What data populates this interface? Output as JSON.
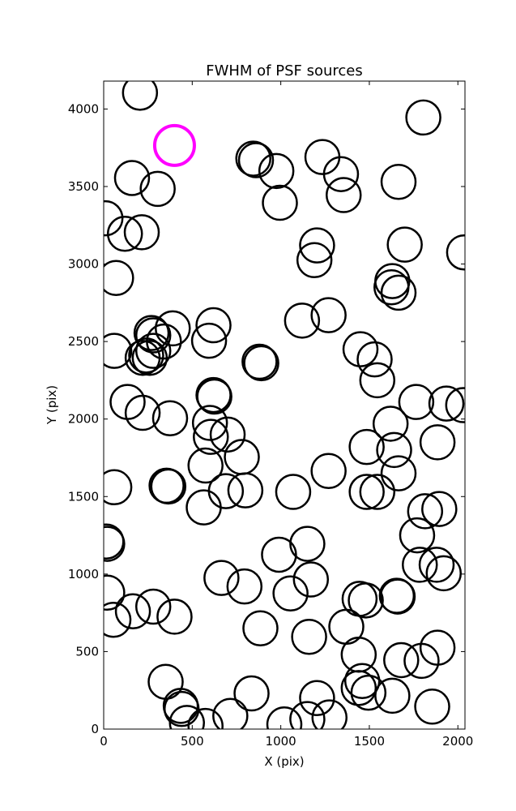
{
  "chart_data": {
    "type": "scatter",
    "title": "FWHM of PSF sources",
    "xlabel": "X (pix)",
    "ylabel": "Y (pix)",
    "xlim": [
      0,
      2040
    ],
    "ylim": [
      0,
      4180
    ],
    "x_ticks": [
      0,
      500,
      1000,
      1500,
      2000
    ],
    "y_ticks": [
      0,
      500,
      1000,
      1500,
      2000,
      2500,
      3000,
      3500,
      4000
    ],
    "grid": false,
    "legend": "none",
    "marker": "open circle",
    "colors": {
      "normal": "#000000",
      "highlight": "#ff00ff"
    },
    "series": [
      {
        "role": "normal",
        "fwhm": 12,
        "points": [
          [
            205,
            4105
          ],
          [
            1805,
            3945
          ],
          [
            845,
            3680
          ],
          [
            860,
            3670
          ],
          [
            1235,
            3690
          ],
          [
            975,
            3600
          ],
          [
            1340,
            3580
          ],
          [
            1355,
            3445
          ],
          [
            1665,
            3530
          ],
          [
            160,
            3555
          ],
          [
            305,
            3485
          ],
          [
            995,
            3395
          ],
          [
            10,
            3295
          ],
          [
            120,
            3195
          ],
          [
            215,
            3205
          ],
          [
            1205,
            3120
          ],
          [
            1190,
            3025
          ],
          [
            1700,
            3125
          ],
          [
            2035,
            3075
          ],
          [
            70,
            2910
          ],
          [
            1630,
            2890
          ],
          [
            1625,
            2850
          ],
          [
            1665,
            2815
          ],
          [
            1120,
            2635
          ],
          [
            1270,
            2670
          ],
          [
            390,
            2585
          ],
          [
            620,
            2605
          ],
          [
            270,
            2555
          ],
          [
            280,
            2540
          ],
          [
            340,
            2500
          ],
          [
            595,
            2505
          ],
          [
            60,
            2440
          ],
          [
            280,
            2440
          ],
          [
            240,
            2410
          ],
          [
            220,
            2395
          ],
          [
            260,
            2395
          ],
          [
            1450,
            2450
          ],
          [
            1530,
            2385
          ],
          [
            880,
            2370
          ],
          [
            890,
            2360
          ],
          [
            1545,
            2250
          ],
          [
            620,
            2155
          ],
          [
            625,
            2145
          ],
          [
            135,
            2110
          ],
          [
            220,
            2040
          ],
          [
            375,
            2005
          ],
          [
            1765,
            2110
          ],
          [
            1935,
            2100
          ],
          [
            2030,
            2090
          ],
          [
            1620,
            1970
          ],
          [
            600,
            1975
          ],
          [
            700,
            1900
          ],
          [
            605,
            1885
          ],
          [
            1485,
            1820
          ],
          [
            1640,
            1800
          ],
          [
            1885,
            1850
          ],
          [
            575,
            1700
          ],
          [
            780,
            1755
          ],
          [
            1270,
            1665
          ],
          [
            1665,
            1650
          ],
          [
            60,
            1560
          ],
          [
            355,
            1570
          ],
          [
            365,
            1565
          ],
          [
            690,
            1535
          ],
          [
            800,
            1540
          ],
          [
            1070,
            1530
          ],
          [
            1485,
            1530
          ],
          [
            1545,
            1530
          ],
          [
            565,
            1430
          ],
          [
            1815,
            1405
          ],
          [
            1895,
            1420
          ],
          [
            15,
            1210
          ],
          [
            20,
            1195
          ],
          [
            1150,
            1195
          ],
          [
            990,
            1125
          ],
          [
            1770,
            1250
          ],
          [
            1785,
            1060
          ],
          [
            1880,
            1060
          ],
          [
            1920,
            1005
          ],
          [
            665,
            975
          ],
          [
            795,
            920
          ],
          [
            1055,
            875
          ],
          [
            1170,
            965
          ],
          [
            20,
            880
          ],
          [
            280,
            790
          ],
          [
            165,
            760
          ],
          [
            55,
            705
          ],
          [
            400,
            725
          ],
          [
            1445,
            840
          ],
          [
            1480,
            830
          ],
          [
            1655,
            860
          ],
          [
            1660,
            855
          ],
          [
            885,
            650
          ],
          [
            1370,
            660
          ],
          [
            1160,
            595
          ],
          [
            1440,
            480
          ],
          [
            1680,
            445
          ],
          [
            1885,
            525
          ],
          [
            1795,
            440
          ],
          [
            350,
            305
          ],
          [
            1460,
            310
          ],
          [
            1440,
            265
          ],
          [
            1495,
            235
          ],
          [
            1630,
            215
          ],
          [
            1205,
            200
          ],
          [
            835,
            230
          ],
          [
            435,
            150
          ],
          [
            440,
            130
          ],
          [
            1855,
            145
          ],
          [
            715,
            85
          ],
          [
            1150,
            65
          ],
          [
            1275,
            75
          ],
          [
            470,
            40
          ],
          [
            575,
            20
          ],
          [
            1020,
            30
          ]
        ]
      },
      {
        "role": "highlight",
        "fwhm": 14,
        "points": [
          [
            400,
            3765
          ]
        ]
      }
    ]
  }
}
